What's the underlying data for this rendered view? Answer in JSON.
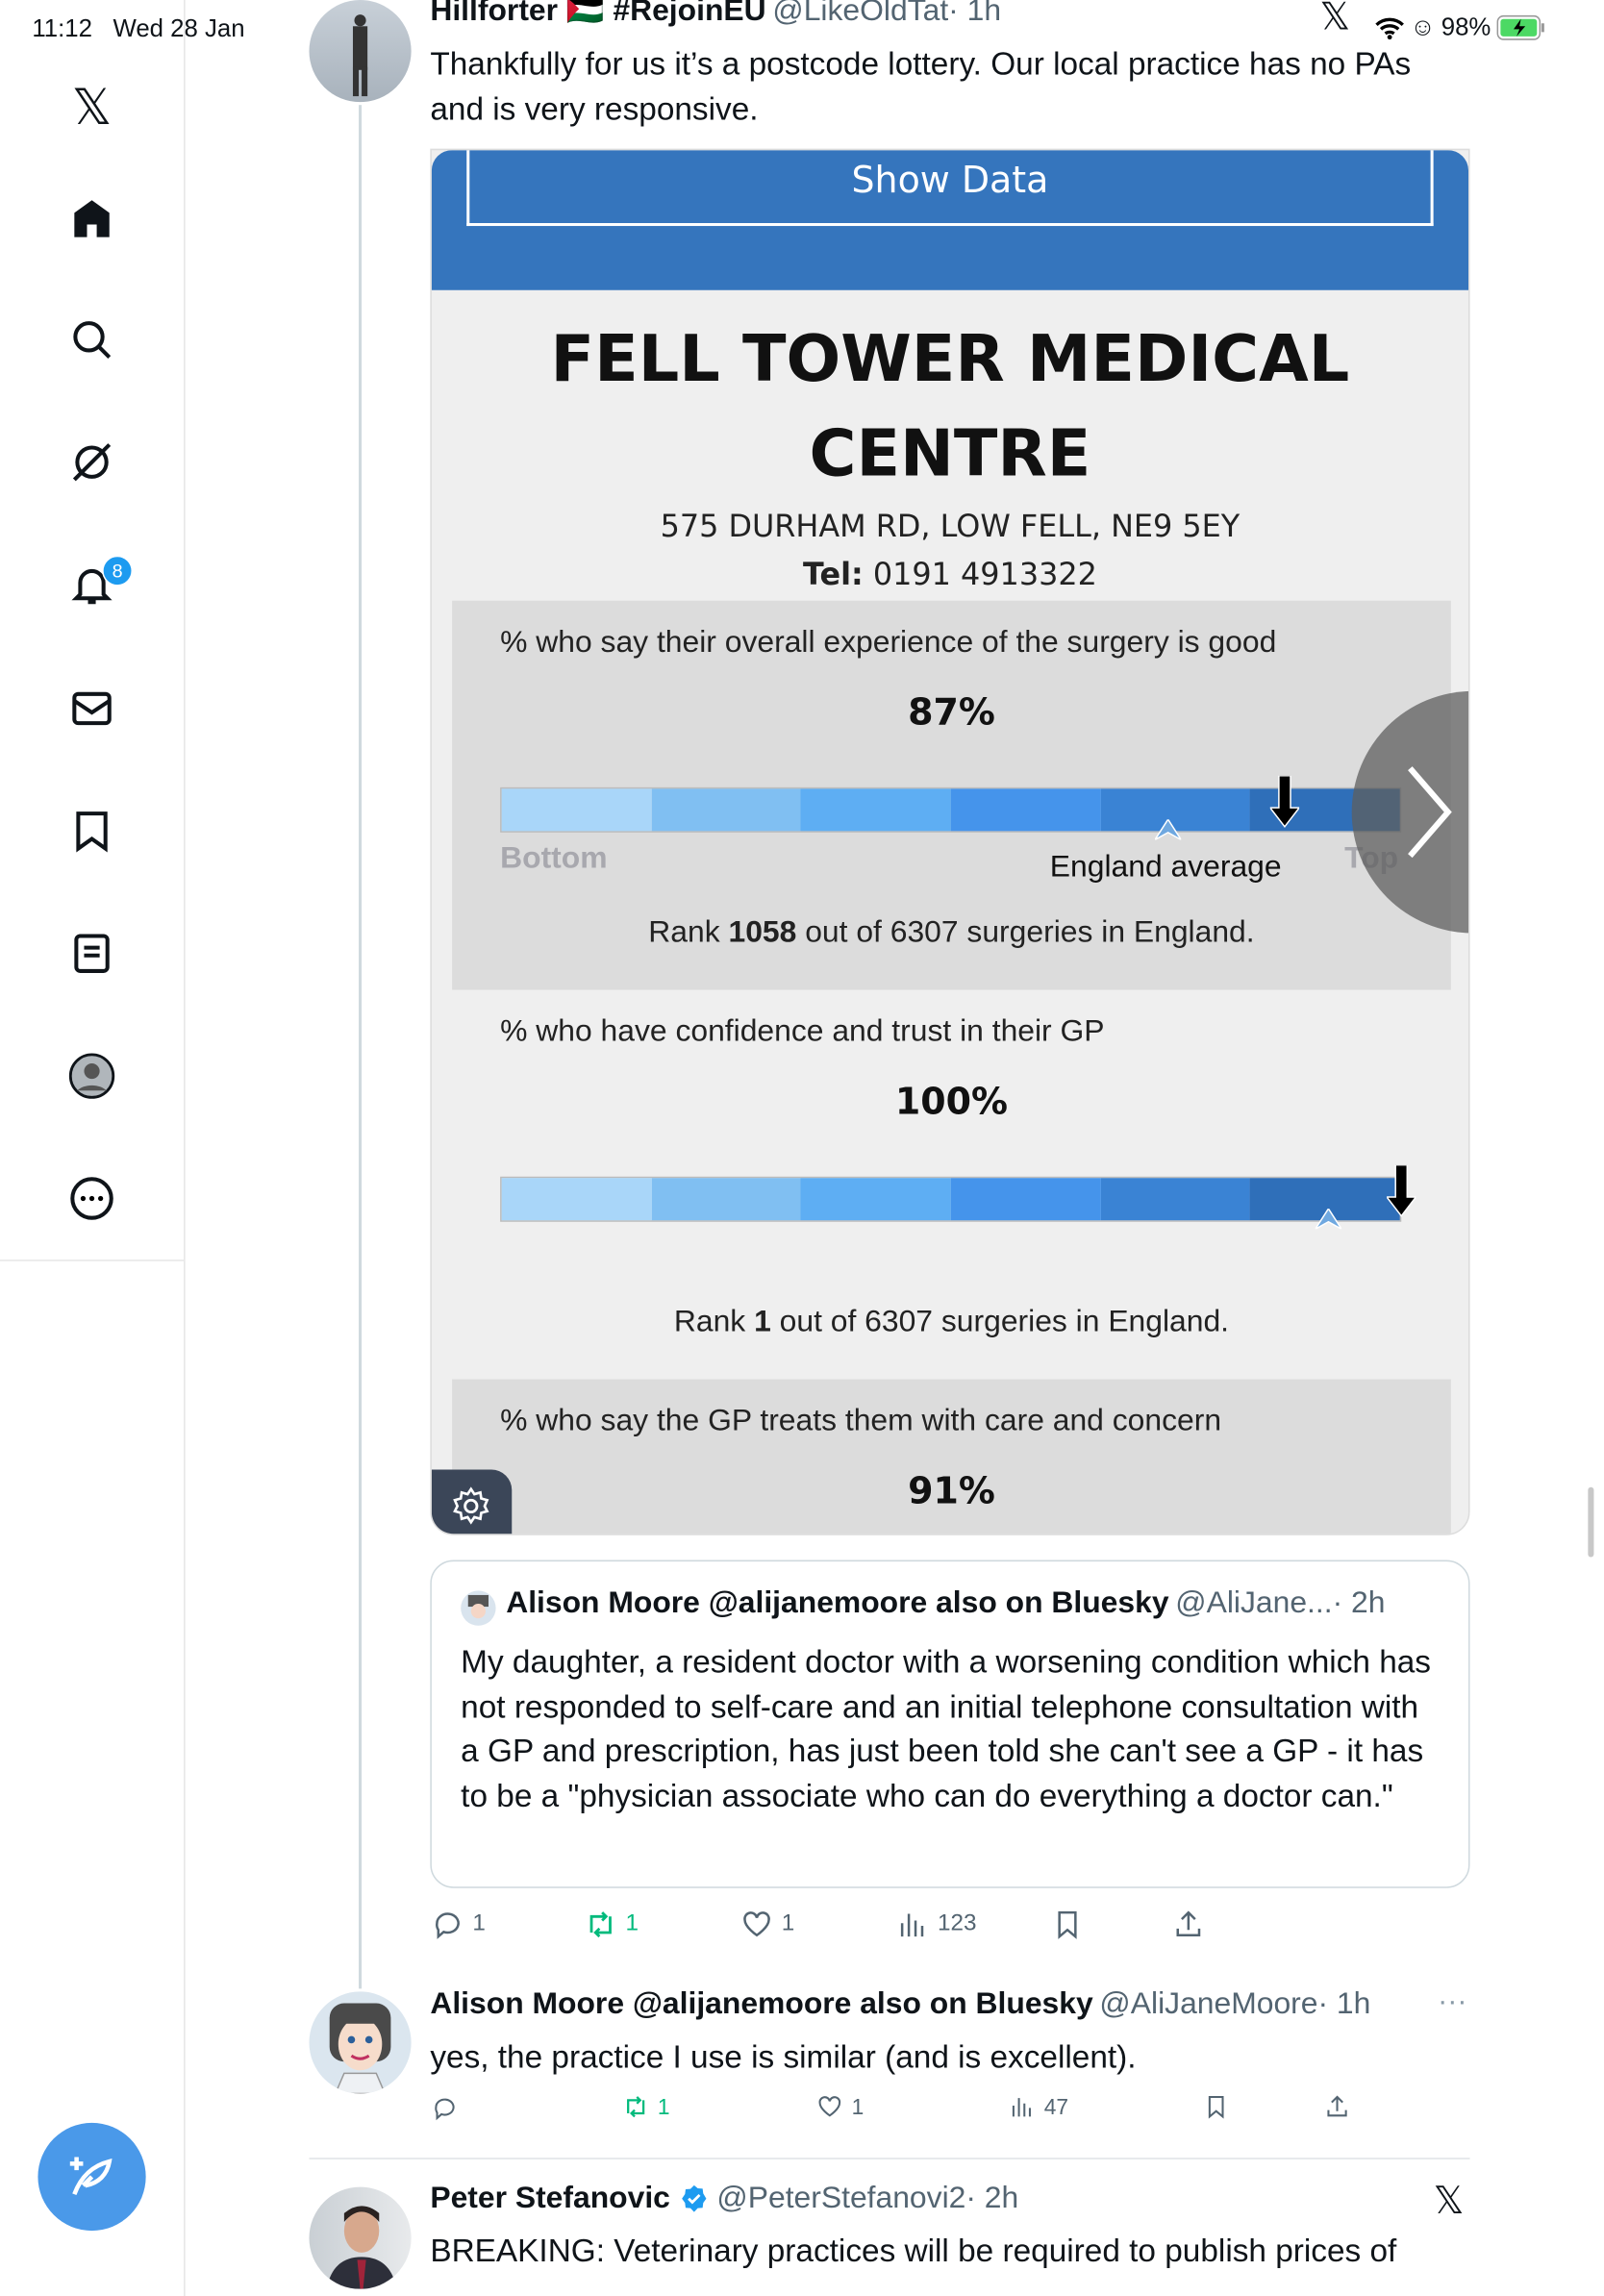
{
  "status_bar": {
    "time": "11:12",
    "date": "Wed 28 Jan",
    "battery": "98%"
  },
  "sidebar": {
    "items": [
      {
        "name": "x-logo"
      },
      {
        "name": "home"
      },
      {
        "name": "search"
      },
      {
        "name": "grok"
      },
      {
        "name": "notifications",
        "badge": "8"
      },
      {
        "name": "messages"
      },
      {
        "name": "bookmarks"
      },
      {
        "name": "lists"
      },
      {
        "name": "profile"
      },
      {
        "name": "more"
      }
    ],
    "compose": "compose-post"
  },
  "colors": {
    "accent": "#1d9bf0",
    "card_header": "#3575bd",
    "retweet": "#00ba7c"
  },
  "tweets": [
    {
      "name": "Hillforter 🇵🇸 #RejoinEU",
      "handle": "@LikeOldTat",
      "time": "· 1h",
      "text": "Thankfully for us it’s a postcode lottery. Our local practice has no PAs and is very responsive.",
      "card": {
        "button": "Show Data",
        "title_line1": "FELL TOWER MEDICAL",
        "title_line2": "CENTRE",
        "address": "575 DURHAM RD, LOW FELL, NE9 5EY",
        "tel_label": "Tel:",
        "tel": "0191 4913322",
        "scale_bottom": "Bottom",
        "scale_top": "Top",
        "average_label": "England average",
        "sections": [
          {
            "question": "% who say their overall experience of the surgery is good",
            "percent": "87%",
            "rank_pre": "Rank",
            "rank": "1058",
            "rank_post": "out of 6307 surgeries in England.",
            "position": 0.87
          },
          {
            "question": "% who have confidence and trust in their GP",
            "percent": "100%",
            "rank_pre": "Rank",
            "rank": "1",
            "rank_post": "out of 6307 surgeries in England.",
            "position": 1.0
          },
          {
            "question": "% who say the GP treats them with care and concern",
            "percent": "91%"
          }
        ]
      },
      "quote": {
        "name": "Alison Moore @alijanemoore also on Bluesky",
        "handle": "@AliJane...",
        "time": "· 2h",
        "text": "My daughter, a resident doctor with a worsening condition which has not responded to self-care and an initial telephone consultation with a GP and prescription, has just been told she can't see a GP - it has to be a \"physician associate who can do everything a doctor can.\""
      },
      "actions": {
        "replies": "1",
        "reposts": "1",
        "likes": "1",
        "views": "123"
      }
    },
    {
      "name": "Alison Moore @alijanemoore also on Bluesky",
      "handle": "@AliJaneMoore",
      "time": "· 1h",
      "text": "yes, the practice I use is similar (and is excellent).",
      "actions": {
        "replies": "",
        "reposts": "1",
        "likes": "1",
        "views": "47"
      }
    },
    {
      "name": "Peter Stefanovic",
      "handle": "@PeterStefanovi2",
      "time": "· 2h",
      "text": "BREAKING: Veterinary practices will be required to publish prices of"
    }
  ]
}
